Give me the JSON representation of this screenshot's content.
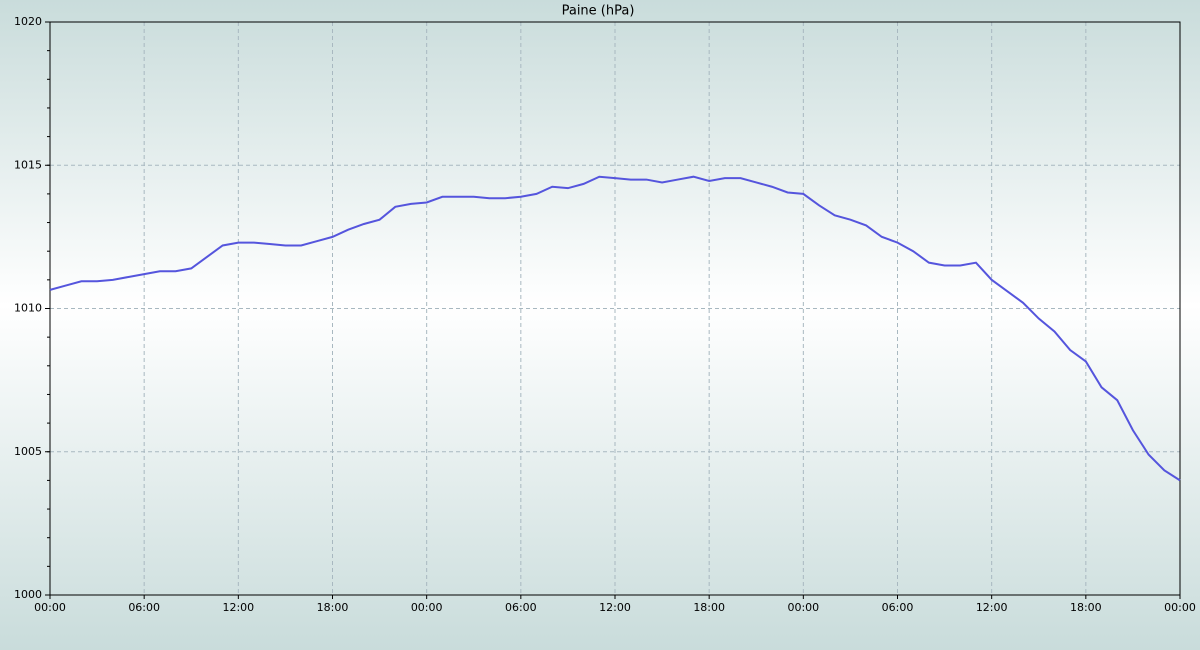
{
  "chart_data": {
    "type": "line",
    "title": "Paine (hPa)",
    "x": [
      0,
      1,
      2,
      3,
      4,
      5,
      6,
      7,
      8,
      9,
      10,
      11,
      12,
      13,
      14,
      15,
      16,
      17,
      18,
      19,
      20,
      21,
      22,
      23,
      24,
      25,
      26,
      27,
      28,
      29,
      30,
      31,
      32,
      33,
      34,
      35,
      36,
      37,
      38,
      39,
      40,
      41,
      42,
      43,
      44,
      45,
      46,
      47,
      48,
      49,
      50,
      51,
      52,
      53,
      54,
      55,
      56,
      57,
      58,
      59,
      60,
      61,
      62,
      63,
      64,
      65,
      66,
      67,
      68,
      69,
      70,
      71,
      72
    ],
    "series": [
      {
        "name": "Paine",
        "color": "#5555dd",
        "values": [
          1010.65,
          1010.8,
          1010.95,
          1010.95,
          1011.0,
          1011.1,
          1011.2,
          1011.3,
          1011.3,
          1011.4,
          1011.8,
          1012.2,
          1012.3,
          1012.3,
          1012.25,
          1012.2,
          1012.2,
          1012.35,
          1012.5,
          1012.75,
          1012.95,
          1013.1,
          1013.55,
          1013.65,
          1013.7,
          1013.9,
          1013.9,
          1013.9,
          1013.85,
          1013.85,
          1013.9,
          1014.0,
          1014.25,
          1014.2,
          1014.35,
          1014.6,
          1014.55,
          1014.5,
          1014.5,
          1014.4,
          1014.5,
          1014.6,
          1014.45,
          1014.55,
          1014.55,
          1014.4,
          1014.25,
          1014.05,
          1014.0,
          1013.6,
          1013.25,
          1013.1,
          1012.9,
          1012.5,
          1012.3,
          1012.0,
          1011.6,
          1011.5,
          1011.5,
          1011.6,
          1011.0,
          1010.6,
          1010.2,
          1009.65,
          1009.2,
          1008.55,
          1008.15,
          1007.25,
          1006.8,
          1005.75,
          1004.9,
          1004.35,
          1004.0
        ]
      }
    ],
    "xlim": [
      0,
      72
    ],
    "xticks": [
      {
        "value": 0,
        "label": "00:00"
      },
      {
        "value": 6,
        "label": "06:00"
      },
      {
        "value": 12,
        "label": "12:00"
      },
      {
        "value": 18,
        "label": "18:00"
      },
      {
        "value": 24,
        "label": "00:00"
      },
      {
        "value": 30,
        "label": "06:00"
      },
      {
        "value": 36,
        "label": "12:00"
      },
      {
        "value": 42,
        "label": "18:00"
      },
      {
        "value": 48,
        "label": "00:00"
      },
      {
        "value": 54,
        "label": "06:00"
      },
      {
        "value": 60,
        "label": "12:00"
      },
      {
        "value": 66,
        "label": "18:00"
      },
      {
        "value": 72,
        "label": "00:00"
      }
    ],
    "ylim": [
      1000,
      1020
    ],
    "yticks": [
      1000,
      1005,
      1010,
      1015,
      1020
    ],
    "grid": true
  }
}
